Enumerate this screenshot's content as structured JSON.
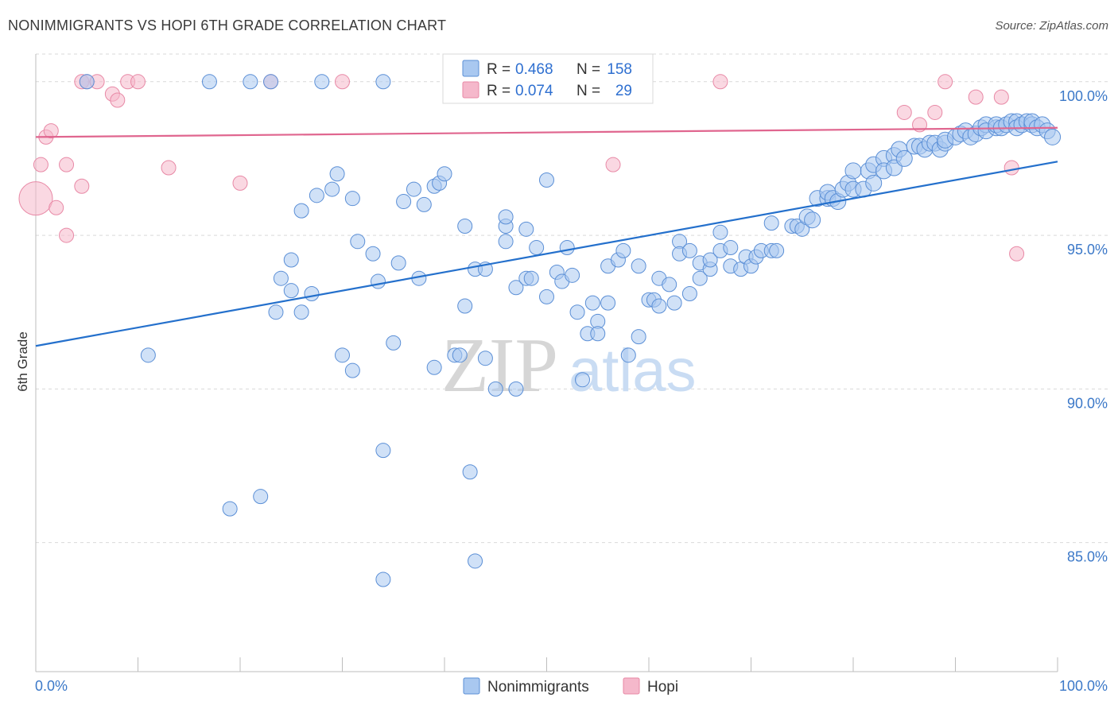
{
  "title": "NONIMMIGRANTS VS HOPI 6TH GRADE CORRELATION CHART",
  "source": "Source: ZipAtlas.com",
  "watermark": {
    "zip": "ZIP",
    "atlas": "atlas"
  },
  "colors": {
    "blue_fill": "#a9c8f0",
    "blue_stroke": "#5b8fd6",
    "blue_line": "#2470cc",
    "pink_fill": "#f5b8cb",
    "pink_stroke": "#e889a6",
    "pink_line": "#e0668f",
    "grid": "#d9d9d9",
    "tick_label": "#3b78c8"
  },
  "legend": {
    "rows": [
      {
        "r_label": "R =",
        "r_value": "0.468",
        "n_label": "N =",
        "n_value": "158"
      },
      {
        "r_label": "R =",
        "r_value": "0.074",
        "n_label": "N =",
        "n_value": "29"
      }
    ]
  },
  "chart_data": {
    "type": "scatter",
    "xlabel": "",
    "ylabel": "6th Grade",
    "xlim": [
      0,
      100
    ],
    "ylim": [
      80.8,
      100.9
    ],
    "x_tick_labels": [
      "0.0%",
      "100.0%"
    ],
    "y_ticks": [
      85,
      90,
      95,
      100
    ],
    "y_tick_labels": [
      "85.0%",
      "90.0%",
      "95.0%",
      "100.0%"
    ],
    "grid": true,
    "series": [
      {
        "name": "Nonimmigrants",
        "trend": {
          "x": [
            0,
            100
          ],
          "y": [
            91.4,
            97.4
          ]
        },
        "points": [
          [
            5,
            100
          ],
          [
            17,
            100
          ],
          [
            21,
            100
          ],
          [
            23,
            100
          ],
          [
            28,
            100
          ],
          [
            34,
            100
          ],
          [
            11,
            91.1
          ],
          [
            19,
            86.1
          ],
          [
            22,
            86.5
          ],
          [
            23.5,
            92.5
          ],
          [
            24,
            93.6
          ],
          [
            25,
            94.2
          ],
          [
            25,
            93.2
          ],
          [
            26,
            92.5
          ],
          [
            26,
            95.8
          ],
          [
            27,
            93.1
          ],
          [
            27.5,
            96.3
          ],
          [
            29,
            96.5
          ],
          [
            29.5,
            97.0
          ],
          [
            30,
            91.1
          ],
          [
            31,
            90.6
          ],
          [
            31,
            96.2
          ],
          [
            31.5,
            94.8
          ],
          [
            33,
            94.4
          ],
          [
            33.5,
            93.5
          ],
          [
            34,
            83.8
          ],
          [
            34,
            88.0
          ],
          [
            35,
            91.5
          ],
          [
            35.5,
            94.1
          ],
          [
            36,
            96.1
          ],
          [
            37,
            96.5
          ],
          [
            37.5,
            93.6
          ],
          [
            38,
            96.0
          ],
          [
            39,
            96.6
          ],
          [
            39,
            90.7
          ],
          [
            39.5,
            96.7
          ],
          [
            40,
            97.0
          ],
          [
            41,
            91.1
          ],
          [
            41.5,
            91.1
          ],
          [
            42,
            92.7
          ],
          [
            42,
            95.3
          ],
          [
            42.5,
            87.3
          ],
          [
            43,
            84.4
          ],
          [
            43,
            93.9
          ],
          [
            44,
            91.0
          ],
          [
            44,
            93.9
          ],
          [
            45,
            90.0
          ],
          [
            46,
            94.8
          ],
          [
            46,
            95.3
          ],
          [
            46,
            95.6
          ],
          [
            47,
            93.3
          ],
          [
            47,
            90.0
          ],
          [
            48,
            93.6
          ],
          [
            48,
            95.2
          ],
          [
            48.5,
            93.6
          ],
          [
            49,
            94.6
          ],
          [
            50,
            93.0
          ],
          [
            50,
            96.8
          ],
          [
            51,
            93.8
          ],
          [
            51.5,
            93.5
          ],
          [
            52,
            94.6
          ],
          [
            52.5,
            93.7
          ],
          [
            53,
            92.5
          ],
          [
            53.5,
            90.3
          ],
          [
            54,
            91.8
          ],
          [
            54.5,
            92.8
          ],
          [
            55,
            92.2
          ],
          [
            55,
            91.8
          ],
          [
            56,
            92.8
          ],
          [
            56,
            94.0
          ],
          [
            57,
            94.2
          ],
          [
            57.5,
            94.5
          ],
          [
            58,
            91.1
          ],
          [
            59,
            94.0
          ],
          [
            59,
            91.7
          ],
          [
            60,
            92.9
          ],
          [
            60.5,
            92.9
          ],
          [
            61,
            92.7
          ],
          [
            61,
            93.6
          ],
          [
            62,
            93.4
          ],
          [
            62.5,
            92.8
          ],
          [
            63,
            94.8
          ],
          [
            63,
            94.4
          ],
          [
            64,
            94.5
          ],
          [
            64,
            93.1
          ],
          [
            65,
            93.6
          ],
          [
            65,
            94.1
          ],
          [
            66,
            93.9
          ],
          [
            66,
            94.2
          ],
          [
            67,
            95.1
          ],
          [
            67,
            94.5
          ],
          [
            68,
            94.0
          ],
          [
            68,
            94.6
          ],
          [
            69,
            93.9
          ],
          [
            69.5,
            94.3
          ],
          [
            70,
            94.0
          ],
          [
            70.5,
            94.3
          ],
          [
            71,
            94.5
          ],
          [
            72,
            95.4
          ],
          [
            72,
            94.5
          ],
          [
            72.5,
            94.5
          ],
          [
            74,
            95.3
          ],
          [
            74.5,
            95.3
          ],
          [
            75,
            95.2
          ],
          [
            75.5,
            95.6
          ],
          [
            76,
            95.5
          ],
          [
            76.5,
            96.2
          ],
          [
            77.5,
            96.2
          ],
          [
            77.5,
            96.4
          ],
          [
            78,
            96.2
          ],
          [
            78.5,
            96.1
          ],
          [
            79,
            96.5
          ],
          [
            79.5,
            96.7
          ],
          [
            80,
            96.5
          ],
          [
            80,
            97.1
          ],
          [
            81,
            96.5
          ],
          [
            81.5,
            97.1
          ],
          [
            82,
            96.7
          ],
          [
            82,
            97.3
          ],
          [
            83,
            97.5
          ],
          [
            83,
            97.1
          ],
          [
            84,
            97.6
          ],
          [
            84,
            97.2
          ],
          [
            84.5,
            97.8
          ],
          [
            85,
            97.5
          ],
          [
            86,
            97.9
          ],
          [
            86.5,
            97.9
          ],
          [
            87,
            97.8
          ],
          [
            87.5,
            98.0
          ],
          [
            88,
            98.0
          ],
          [
            88.5,
            97.8
          ],
          [
            89,
            98.0
          ],
          [
            89,
            98.1
          ],
          [
            90,
            98.2
          ],
          [
            90.5,
            98.3
          ],
          [
            91,
            98.4
          ],
          [
            91.5,
            98.2
          ],
          [
            92,
            98.3
          ],
          [
            92.5,
            98.5
          ],
          [
            93,
            98.6
          ],
          [
            93,
            98.4
          ],
          [
            94,
            98.5
          ],
          [
            94,
            98.6
          ],
          [
            94.5,
            98.5
          ],
          [
            95,
            98.6
          ],
          [
            95.5,
            98.7
          ],
          [
            96,
            98.7
          ],
          [
            96,
            98.5
          ],
          [
            96.5,
            98.6
          ],
          [
            97,
            98.7
          ],
          [
            97.5,
            98.6
          ],
          [
            97.5,
            98.7
          ],
          [
            98,
            98.5
          ],
          [
            98.5,
            98.6
          ],
          [
            99,
            98.4
          ],
          [
            99.5,
            98.2
          ]
        ]
      },
      {
        "name": "Hopi",
        "trend": {
          "x": [
            0,
            100
          ],
          "y": [
            98.2,
            98.5
          ]
        },
        "points": [
          [
            0,
            96.2
          ],
          [
            0.5,
            97.3
          ],
          [
            1,
            98.2
          ],
          [
            1.5,
            98.4
          ],
          [
            2,
            95.9
          ],
          [
            3,
            97.3
          ],
          [
            3,
            95.0
          ],
          [
            4.5,
            100
          ],
          [
            4.5,
            96.6
          ],
          [
            5,
            100
          ],
          [
            6,
            100
          ],
          [
            7.5,
            99.6
          ],
          [
            8,
            99.4
          ],
          [
            9,
            100
          ],
          [
            10,
            100
          ],
          [
            13,
            97.2
          ],
          [
            20,
            96.7
          ],
          [
            23,
            100
          ],
          [
            30,
            100
          ],
          [
            56.5,
            97.3
          ],
          [
            67,
            100
          ],
          [
            85,
            99.0
          ],
          [
            86.5,
            98.6
          ],
          [
            88,
            99.0
          ],
          [
            89,
            100
          ],
          [
            92,
            99.5
          ],
          [
            94.5,
            99.5
          ],
          [
            95.5,
            97.2
          ],
          [
            96,
            94.4
          ]
        ]
      }
    ]
  },
  "bottom_legend": [
    {
      "label": "Nonimmigrants"
    },
    {
      "label": "Hopi"
    }
  ]
}
